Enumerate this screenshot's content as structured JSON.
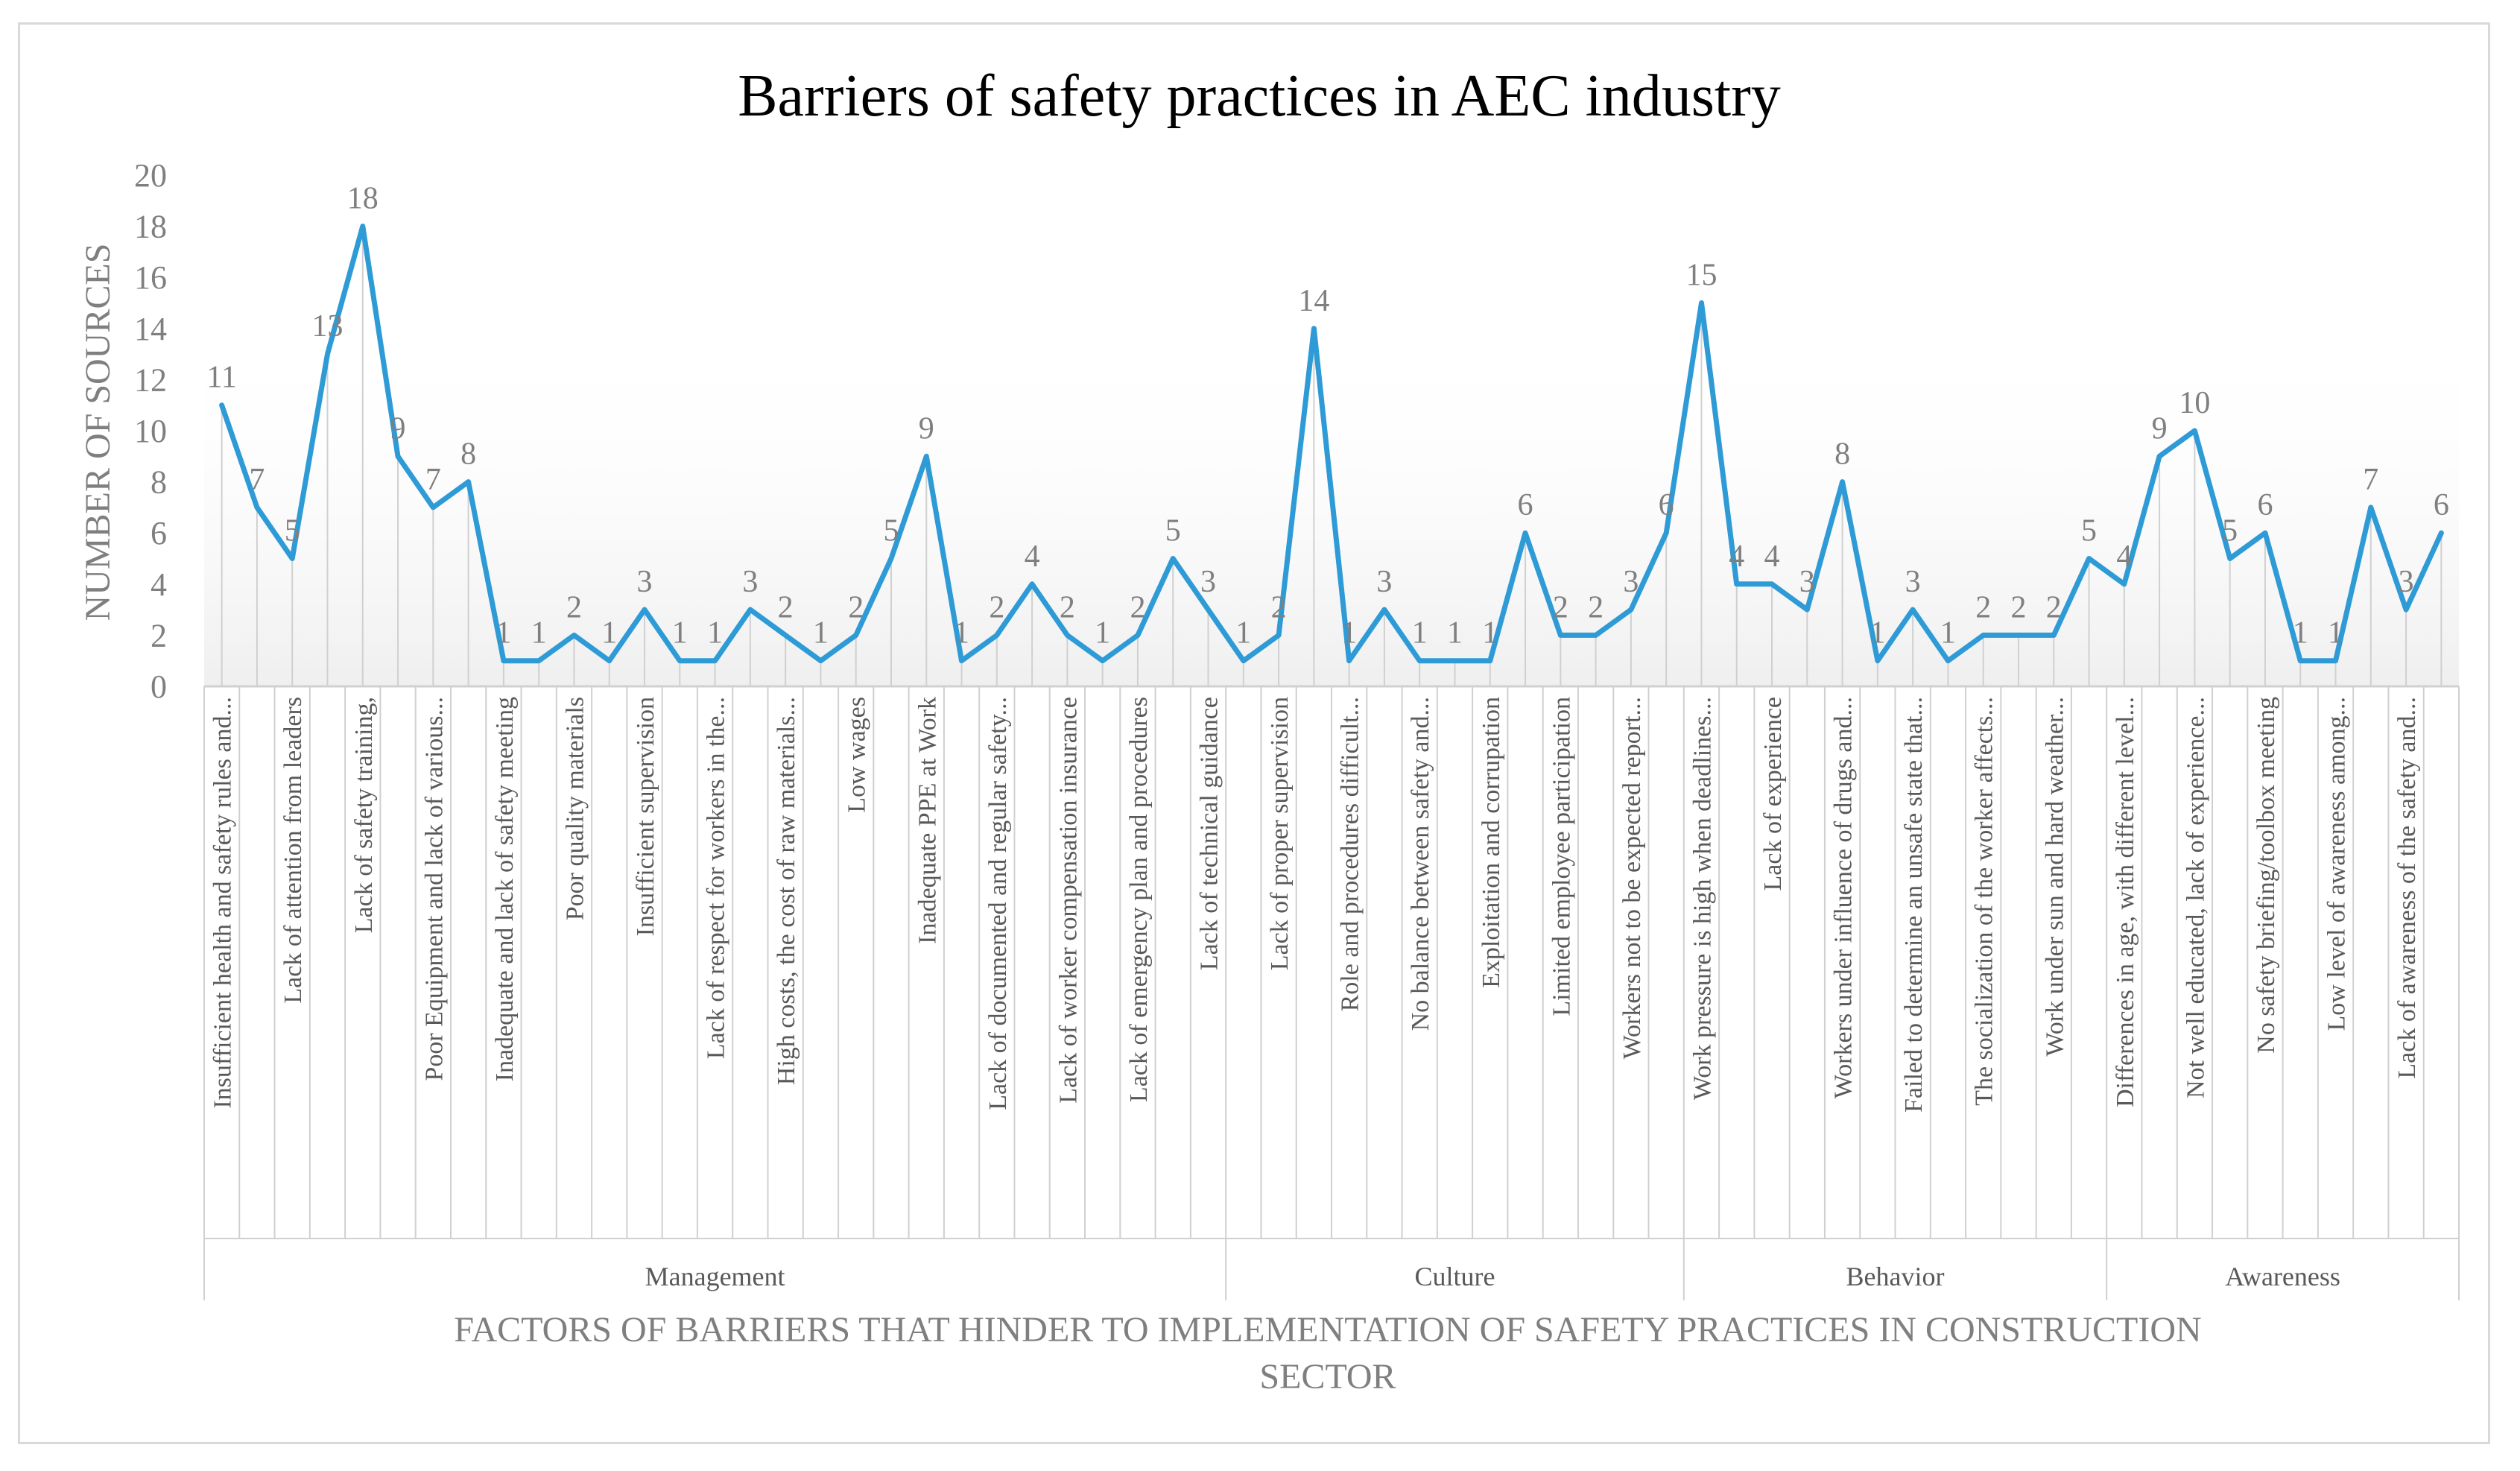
{
  "chart_data": {
    "type": "line",
    "title": "Barriers of safety practices in AEC industry",
    "ylabel": "NUMBER OF  SOURCES",
    "xlabel": "FACTORS OF BARRIERS THAT HINDER TO IMPLEMENTATION OF SAFETY PRACTICES IN CONSTRUCTION SECTOR",
    "xlabel_lines": [
      "FACTORS OF BARRIERS THAT HINDER TO IMPLEMENTATION OF SAFETY PRACTICES IN CONSTRUCTION",
      "SECTOR"
    ],
    "ylim": [
      0,
      20
    ],
    "yticks": [
      0,
      2,
      4,
      6,
      8,
      10,
      12,
      14,
      16,
      18,
      20
    ],
    "grid": false,
    "line_color": "#2e9bd6",
    "values": [
      11,
      7,
      5,
      13,
      18,
      9,
      7,
      8,
      1,
      1,
      2,
      1,
      3,
      1,
      1,
      3,
      2,
      1,
      2,
      5,
      9,
      1,
      2,
      4,
      2,
      1,
      2,
      5,
      3,
      1,
      2,
      14,
      1,
      3,
      1,
      1,
      1,
      6,
      2,
      2,
      3,
      6,
      15,
      4,
      4,
      3,
      8,
      1,
      3,
      1,
      2,
      2,
      2,
      5,
      4,
      9,
      10,
      5,
      6,
      1,
      1,
      7,
      3,
      6
    ],
    "visible_labels": [
      {
        "index": 0,
        "text": "Insufficient health and safety rules and..."
      },
      {
        "index": 2,
        "text": "Lack of attention from leaders"
      },
      {
        "index": 4,
        "text": "Lack of safety training,"
      },
      {
        "index": 6,
        "text": "Poor Equipment and lack of various..."
      },
      {
        "index": 8,
        "text": "Inadequate and lack of safety meeting"
      },
      {
        "index": 10,
        "text": "Poor quality materials"
      },
      {
        "index": 12,
        "text": "Insufficient supervision"
      },
      {
        "index": 14,
        "text": "Lack of respect for workers in the..."
      },
      {
        "index": 16,
        "text": "High costs, the cost of raw materials..."
      },
      {
        "index": 18,
        "text": "Low wages"
      },
      {
        "index": 20,
        "text": "Inadequate PPE at Work"
      },
      {
        "index": 22,
        "text": "Lack of documented and regular safety..."
      },
      {
        "index": 24,
        "text": "Lack of worker compensation insurance"
      },
      {
        "index": 26,
        "text": "Lack of emergency plan and procedures"
      },
      {
        "index": 28,
        "text": "Lack of technical guidance"
      },
      {
        "index": 30,
        "text": "Lack of proper supervision"
      },
      {
        "index": 32,
        "text": "Role and procedures difficult..."
      },
      {
        "index": 34,
        "text": "No balance between safety and..."
      },
      {
        "index": 36,
        "text": "Exploitation and corrupation"
      },
      {
        "index": 38,
        "text": "Limited employee participation"
      },
      {
        "index": 40,
        "text": "Workers not to be expected report..."
      },
      {
        "index": 42,
        "text": "Work pressure is high when deadlines..."
      },
      {
        "index": 44,
        "text": "Lack of experience"
      },
      {
        "index": 46,
        "text": "Workers under influence of drugs and..."
      },
      {
        "index": 48,
        "text": "Failed to determine an unsafe state that..."
      },
      {
        "index": 50,
        "text": "The socialization of the worker affects..."
      },
      {
        "index": 52,
        "text": "Work under sun and hard weather..."
      },
      {
        "index": 54,
        "text": "Differences in age, with different level..."
      },
      {
        "index": 56,
        "text": "Not well educated, lack of experience..."
      },
      {
        "index": 58,
        "text": "No safety briefing/toolbox meeting"
      },
      {
        "index": 60,
        "text": "Low level of awareness among..."
      },
      {
        "index": 62,
        "text": "Lack of awareness of the safety and..."
      }
    ],
    "groups": [
      {
        "name": "Management",
        "start": 0,
        "count": 29
      },
      {
        "name": "Culture",
        "start": 29,
        "count": 13
      },
      {
        "name": "Behavior",
        "start": 42,
        "count": 12
      },
      {
        "name": "Awareness",
        "start": 54,
        "count": 10
      }
    ]
  }
}
